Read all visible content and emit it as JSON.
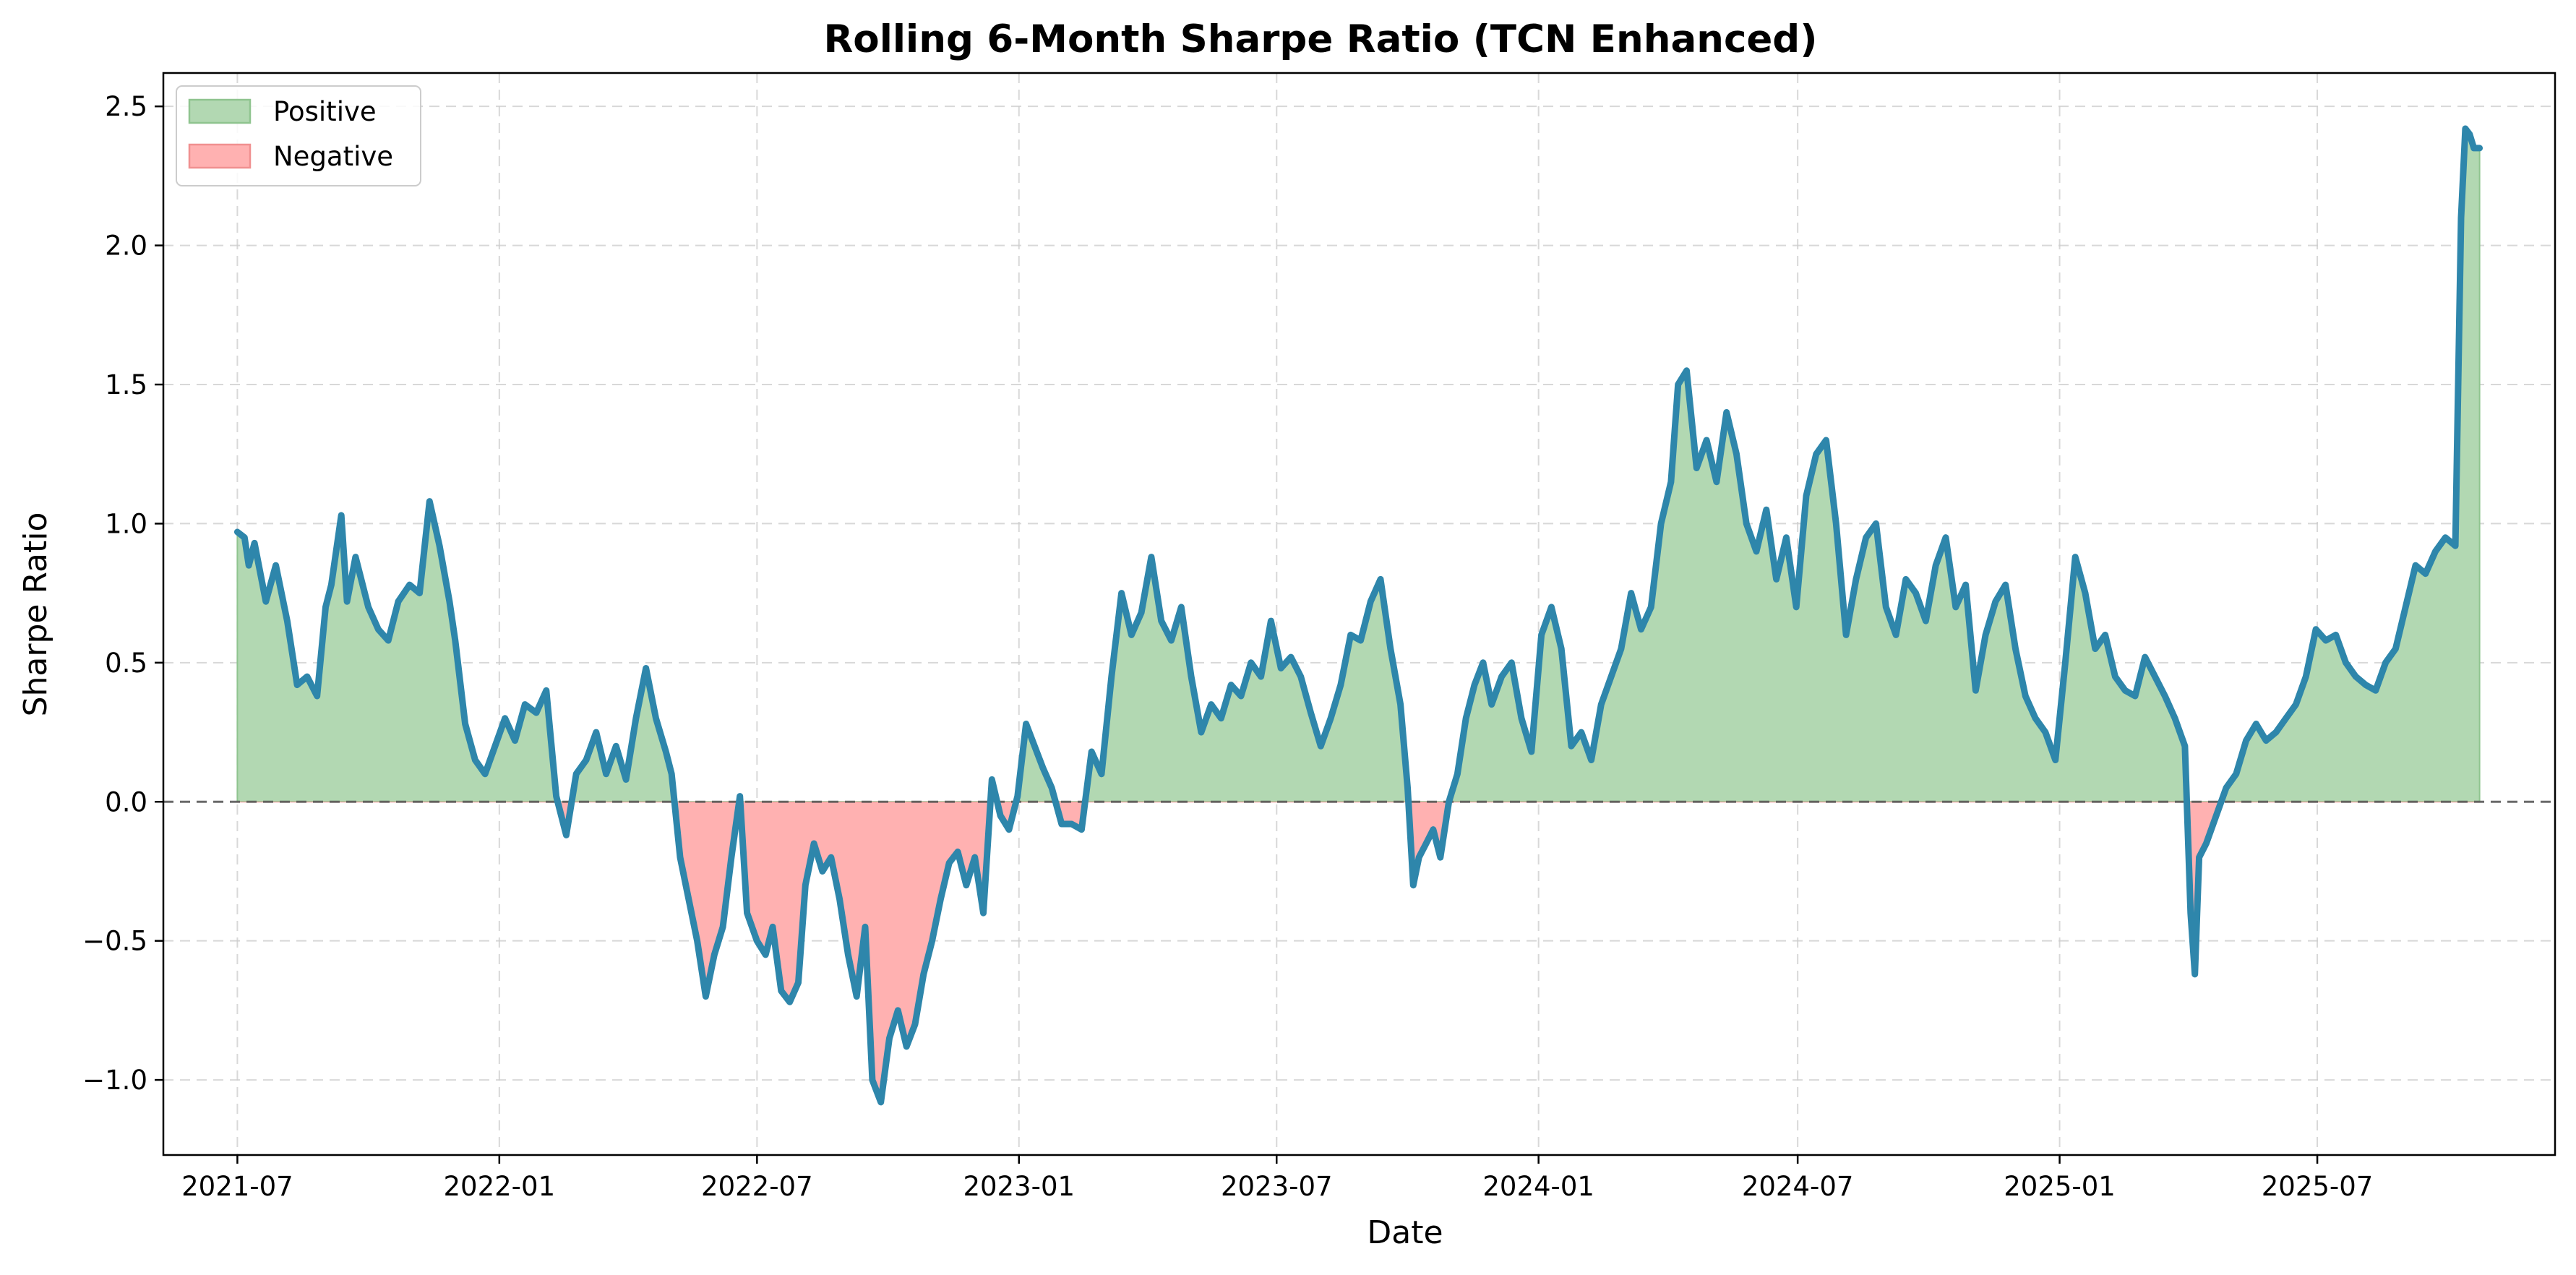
{
  "chart_data": {
    "type": "area",
    "title": "Rolling 6-Month Sharpe Ratio (TCN Enhanced)",
    "xlabel": "Date",
    "ylabel": "Sharpe Ratio",
    "xlim": [
      "2021-05-10",
      "2025-12-15"
    ],
    "ylim": [
      -1.27,
      2.62
    ],
    "grid": true,
    "legend_position": "top-left",
    "x_ticks": [
      "2021-07",
      "2022-01",
      "2022-07",
      "2023-01",
      "2023-07",
      "2024-01",
      "2024-07",
      "2025-01",
      "2025-07"
    ],
    "y_ticks": [
      -1.0,
      -0.5,
      0.0,
      0.5,
      1.0,
      1.5,
      2.0,
      2.5
    ],
    "y_tick_labels": [
      "−1.0",
      "−0.5",
      "0.0",
      "0.5",
      "1.0",
      "1.5",
      "2.0",
      "2.5"
    ],
    "legend": [
      {
        "label": "Positive",
        "color": "#b2d8b2"
      },
      {
        "label": "Negative",
        "color": "#ffb1b1"
      }
    ],
    "colors": {
      "line": "#2e86ab",
      "positive_fill": "#b2d8b2",
      "negative_fill": "#ffb1b1",
      "positive_edge": "#8fc48f",
      "negative_edge": "#f09090",
      "zero_line": "#555555"
    },
    "series": [
      {
        "x": [
          "2021-07-01",
          "2021-07-06",
          "2021-07-09",
          "2021-07-13",
          "2021-07-21",
          "2021-07-28",
          "2021-08-05",
          "2021-08-12",
          "2021-08-19",
          "2021-08-26",
          "2021-09-01",
          "2021-09-05",
          "2021-09-12",
          "2021-09-16",
          "2021-09-22",
          "2021-10-01",
          "2021-10-08",
          "2021-10-15",
          "2021-10-22",
          "2021-10-30",
          "2021-11-06",
          "2021-11-13",
          "2021-11-20",
          "2021-11-27",
          "2021-12-01",
          "2021-12-08",
          "2021-12-15",
          "2021-12-22",
          "2021-12-29",
          "2022-01-05",
          "2022-01-12",
          "2022-01-19",
          "2022-01-27",
          "2022-02-03",
          "2022-02-10",
          "2022-02-17",
          "2022-02-24",
          "2022-03-03",
          "2022-03-10",
          "2022-03-17",
          "2022-03-24",
          "2022-03-31",
          "2022-04-07",
          "2022-04-14",
          "2022-04-21",
          "2022-04-28",
          "2022-05-02",
          "2022-05-08",
          "2022-05-14",
          "2022-05-20",
          "2022-05-26",
          "2022-06-01",
          "2022-06-07",
          "2022-06-13",
          "2022-06-19",
          "2022-06-24",
          "2022-07-01",
          "2022-07-07",
          "2022-07-12",
          "2022-07-18",
          "2022-07-24",
          "2022-07-30",
          "2022-08-04",
          "2022-08-10",
          "2022-08-16",
          "2022-08-22",
          "2022-08-28",
          "2022-09-03",
          "2022-09-09",
          "2022-09-15",
          "2022-09-20",
          "2022-09-26",
          "2022-10-02",
          "2022-10-08",
          "2022-10-14",
          "2022-10-20",
          "2022-10-26",
          "2022-11-01",
          "2022-11-07",
          "2022-11-13",
          "2022-11-19",
          "2022-11-25",
          "2022-12-01",
          "2022-12-07",
          "2022-12-13",
          "2022-12-19",
          "2022-12-25",
          "2022-12-31",
          "2023-01-06",
          "2023-01-12",
          "2023-01-18",
          "2023-01-24",
          "2023-01-31",
          "2023-02-07",
          "2023-02-14",
          "2023-02-21",
          "2023-02-28",
          "2023-03-07",
          "2023-03-14",
          "2023-03-21",
          "2023-03-28",
          "2023-04-04",
          "2023-04-11",
          "2023-04-18",
          "2023-04-25",
          "2023-05-02",
          "2023-05-09",
          "2023-05-16",
          "2023-05-23",
          "2023-05-30",
          "2023-06-06",
          "2023-06-13",
          "2023-06-20",
          "2023-06-27",
          "2023-07-04",
          "2023-07-11",
          "2023-07-18",
          "2023-07-25",
          "2023-08-01",
          "2023-08-08",
          "2023-08-15",
          "2023-08-22",
          "2023-08-29",
          "2023-09-05",
          "2023-09-12",
          "2023-09-19",
          "2023-09-26",
          "2023-10-01",
          "2023-10-05",
          "2023-10-09",
          "2023-10-14",
          "2023-10-19",
          "2023-10-24",
          "2023-10-30",
          "2023-11-05",
          "2023-11-11",
          "2023-11-17",
          "2023-11-23",
          "2023-11-29",
          "2023-12-06",
          "2023-12-13",
          "2023-12-20",
          "2023-12-27",
          "2024-01-03",
          "2024-01-10",
          "2024-01-17",
          "2024-01-24",
          "2024-01-31",
          "2024-02-07",
          "2024-02-14",
          "2024-02-21",
          "2024-02-28",
          "2024-03-06",
          "2024-03-13",
          "2024-03-20",
          "2024-03-27",
          "2024-04-03",
          "2024-04-08",
          "2024-04-14",
          "2024-04-21",
          "2024-04-28",
          "2024-05-05",
          "2024-05-12",
          "2024-05-19",
          "2024-05-26",
          "2024-06-02",
          "2024-06-09",
          "2024-06-16",
          "2024-06-23",
          "2024-06-30",
          "2024-07-07",
          "2024-07-14",
          "2024-07-21",
          "2024-07-28",
          "2024-08-04",
          "2024-08-11",
          "2024-08-18",
          "2024-08-25",
          "2024-09-01",
          "2024-09-08",
          "2024-09-15",
          "2024-09-22",
          "2024-09-29",
          "2024-10-06",
          "2024-10-13",
          "2024-10-20",
          "2024-10-27",
          "2024-11-03",
          "2024-11-10",
          "2024-11-17",
          "2024-11-24",
          "2024-12-01",
          "2024-12-08",
          "2024-12-15",
          "2024-12-22",
          "2024-12-29",
          "2025-01-05",
          "2025-01-12",
          "2025-01-19",
          "2025-01-26",
          "2025-02-02",
          "2025-02-09",
          "2025-02-16",
          "2025-02-23",
          "2025-03-02",
          "2025-03-09",
          "2025-03-16",
          "2025-03-23",
          "2025-03-30",
          "2025-04-03",
          "2025-04-06",
          "2025-04-09",
          "2025-04-14",
          "2025-04-21",
          "2025-04-28",
          "2025-05-05",
          "2025-05-12",
          "2025-05-19",
          "2025-05-26",
          "2025-06-02",
          "2025-06-09",
          "2025-06-16",
          "2025-06-23",
          "2025-06-30",
          "2025-07-07",
          "2025-07-14",
          "2025-07-21",
          "2025-07-28",
          "2025-08-04",
          "2025-08-11",
          "2025-08-18",
          "2025-08-25",
          "2025-09-01",
          "2025-09-08",
          "2025-09-15",
          "2025-09-22",
          "2025-09-29",
          "2025-10-06",
          "2025-10-10",
          "2025-10-13",
          "2025-10-16",
          "2025-10-19",
          "2025-10-23"
        ],
        "values": [
          0.97,
          0.95,
          0.85,
          0.93,
          0.72,
          0.85,
          0.65,
          0.42,
          0.45,
          0.38,
          0.7,
          0.78,
          1.03,
          0.72,
          0.88,
          0.7,
          0.62,
          0.58,
          0.72,
          0.78,
          0.75,
          1.08,
          0.92,
          0.72,
          0.58,
          0.28,
          0.15,
          0.1,
          0.2,
          0.3,
          0.22,
          0.35,
          0.32,
          0.4,
          0.02,
          -0.12,
          0.1,
          0.15,
          0.25,
          0.1,
          0.2,
          0.08,
          0.3,
          0.48,
          0.3,
          0.18,
          0.1,
          -0.2,
          -0.35,
          -0.5,
          -0.7,
          -0.55,
          -0.45,
          -0.2,
          0.02,
          -0.4,
          -0.5,
          -0.55,
          -0.45,
          -0.68,
          -0.72,
          -0.65,
          -0.3,
          -0.15,
          -0.25,
          -0.2,
          -0.35,
          -0.55,
          -0.7,
          -0.45,
          -1.0,
          -1.08,
          -0.85,
          -0.75,
          -0.88,
          -0.8,
          -0.62,
          -0.5,
          -0.35,
          -0.22,
          -0.18,
          -0.3,
          -0.2,
          -0.4,
          0.08,
          -0.05,
          -0.1,
          0.02,
          0.28,
          0.2,
          0.12,
          0.05,
          -0.08,
          -0.08,
          -0.1,
          0.18,
          0.1,
          0.45,
          0.75,
          0.6,
          0.68,
          0.88,
          0.65,
          0.58,
          0.7,
          0.45,
          0.25,
          0.35,
          0.3,
          0.42,
          0.38,
          0.5,
          0.45,
          0.65,
          0.48,
          0.52,
          0.45,
          0.32,
          0.2,
          0.3,
          0.42,
          0.6,
          0.58,
          0.72,
          0.8,
          0.55,
          0.35,
          0.05,
          -0.3,
          -0.2,
          -0.15,
          -0.1,
          -0.2,
          0.0,
          0.1,
          0.3,
          0.42,
          0.5,
          0.35,
          0.45,
          0.5,
          0.3,
          0.18,
          0.6,
          0.7,
          0.55,
          0.2,
          0.25,
          0.15,
          0.35,
          0.45,
          0.55,
          0.75,
          0.62,
          0.7,
          1.0,
          1.15,
          1.5,
          1.55,
          1.2,
          1.3,
          1.15,
          1.4,
          1.25,
          1.0,
          0.9,
          1.05,
          0.8,
          0.95,
          0.7,
          1.1,
          1.25,
          1.3,
          1.0,
          0.6,
          0.8,
          0.95,
          1.0,
          0.7,
          0.6,
          0.8,
          0.75,
          0.65,
          0.85,
          0.95,
          0.7,
          0.78,
          0.4,
          0.6,
          0.72,
          0.78,
          0.55,
          0.38,
          0.3,
          0.25,
          0.15,
          0.5,
          0.88,
          0.75,
          0.55,
          0.6,
          0.45,
          0.4,
          0.38,
          0.52,
          0.45,
          0.38,
          0.3,
          0.2,
          -0.4,
          -0.62,
          -0.2,
          -0.15,
          -0.05,
          0.05,
          0.1,
          0.22,
          0.28,
          0.22,
          0.25,
          0.3,
          0.35,
          0.45,
          0.62,
          0.58,
          0.6,
          0.5,
          0.45,
          0.42,
          0.4,
          0.5,
          0.55,
          0.7,
          0.85,
          0.82,
          0.9,
          0.95,
          0.92,
          2.1,
          2.42,
          2.4,
          2.35,
          2.35
        ]
      }
    ]
  }
}
